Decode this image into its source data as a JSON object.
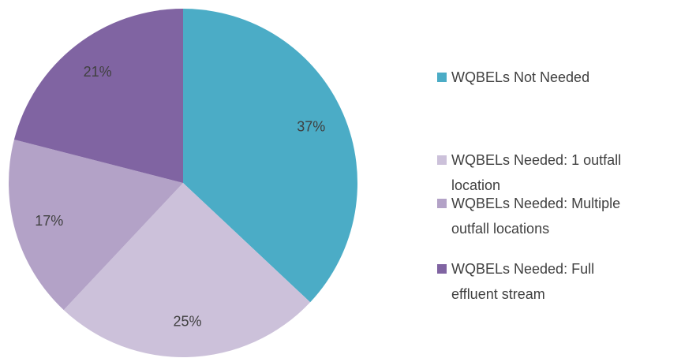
{
  "chart_data": {
    "type": "pie",
    "categories": [
      "WQBELs Not Needed",
      "WQBELs Needed: 1 outfall location",
      "WQBELs Needed: Multiple outfall locations",
      "WQBELs Needed: Full effluent stream"
    ],
    "values": [
      37,
      25,
      17,
      21
    ],
    "value_labels": [
      "37%",
      "25%",
      "17%",
      "21%"
    ],
    "colors": [
      "#4bacc6",
      "#ccc1da",
      "#b3a2c7",
      "#8064a2"
    ]
  }
}
